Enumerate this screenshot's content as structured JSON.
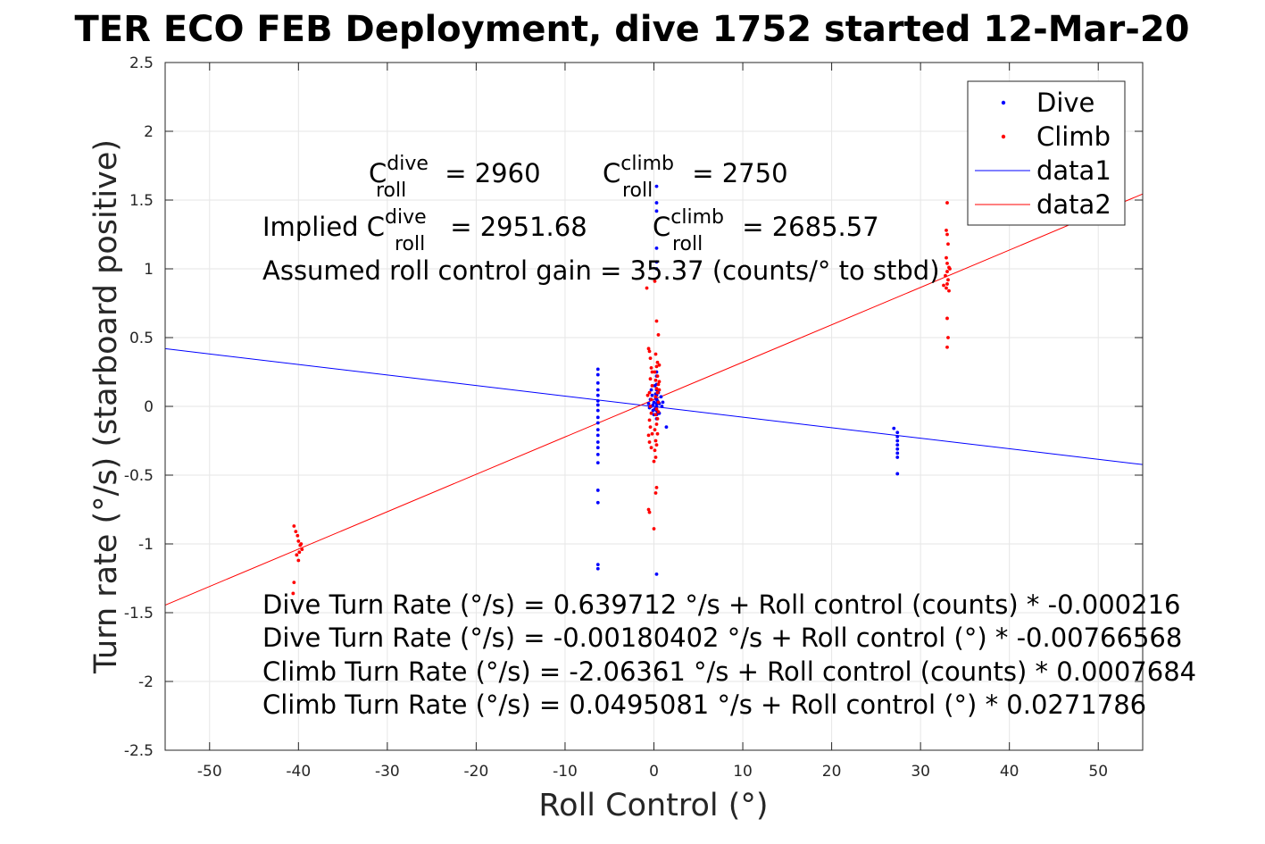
{
  "chart_data": {
    "type": "scatter",
    "title": "TER ECO FEB Deployment, dive 1752 started 12-Mar-20",
    "xlabel": "Roll Control (°)",
    "ylabel": "Turn rate (°/s) (starboard positive)",
    "xlim": [
      -55,
      55
    ],
    "ylim": [
      -2.5,
      2.5
    ],
    "xticks": [
      -50,
      -40,
      -30,
      -20,
      -10,
      0,
      10,
      20,
      30,
      40,
      50
    ],
    "yticks": [
      -2.5,
      -2,
      -1.5,
      -1,
      -0.5,
      0,
      0.5,
      1,
      1.5,
      2,
      2.5
    ],
    "grid": true,
    "legend_position": "top-right",
    "colors": {
      "dive": "#0000ff",
      "climb": "#ff0000"
    },
    "series": [
      {
        "name": "Dive",
        "kind": "points",
        "color": "#0000ff",
        "points": [
          [
            -6.3,
            0.27
          ],
          [
            -6.3,
            0.23
          ],
          [
            -6.3,
            0.17
          ],
          [
            -6.3,
            0.12
          ],
          [
            -6.3,
            0.08
          ],
          [
            -6.3,
            0.04
          ],
          [
            -6.3,
            0.01
          ],
          [
            -6.3,
            -0.03
          ],
          [
            -6.3,
            -0.08
          ],
          [
            -6.3,
            -0.12
          ],
          [
            -6.3,
            -0.17
          ],
          [
            -6.3,
            -0.21
          ],
          [
            -6.3,
            -0.26
          ],
          [
            -6.3,
            -0.3
          ],
          [
            -6.3,
            -0.35
          ],
          [
            -6.3,
            -0.41
          ],
          [
            -6.3,
            -0.61
          ],
          [
            -6.3,
            -0.7
          ],
          [
            -6.3,
            -1.15
          ],
          [
            -6.3,
            -1.18
          ],
          [
            0.3,
            1.6
          ],
          [
            0.3,
            1.48
          ],
          [
            0.3,
            1.42
          ],
          [
            0.3,
            1.15
          ],
          [
            0.3,
            1.05
          ],
          [
            0.3,
            1.0
          ],
          [
            0.3,
            0.25
          ],
          [
            0.3,
            0.22
          ],
          [
            0.3,
            0.16
          ],
          [
            0.3,
            0.12
          ],
          [
            0.3,
            0.08
          ],
          [
            0.3,
            0.05
          ],
          [
            0.3,
            0.02
          ],
          [
            0.3,
            0.0
          ],
          [
            0.3,
            -0.03
          ],
          [
            0.3,
            -0.06
          ],
          [
            0.3,
            -0.09
          ],
          [
            0.3,
            -1.22
          ],
          [
            -0.6,
            0.02
          ],
          [
            -0.5,
            -0.01
          ],
          [
            -0.4,
            0.05
          ],
          [
            -0.3,
            0.0
          ],
          [
            -0.2,
            0.08
          ],
          [
            -0.1,
            0.01
          ],
          [
            0.0,
            0.03
          ],
          [
            0.1,
            -0.02
          ],
          [
            0.2,
            0.06
          ],
          [
            0.4,
            0.04
          ],
          [
            0.5,
            0.1
          ],
          [
            0.6,
            0.02
          ],
          [
            0.8,
            0.07
          ],
          [
            0.9,
            0.0
          ],
          [
            -0.3,
            0.12
          ],
          [
            0.1,
            0.15
          ],
          [
            -0.1,
            -0.03
          ],
          [
            0.6,
            -0.05
          ],
          [
            1.0,
            0.03
          ],
          [
            0.4,
            -0.04
          ],
          [
            0.2,
            0.09
          ],
          [
            0.0,
            -0.06
          ],
          [
            1.4,
            -0.15
          ],
          [
            27.0,
            -0.16
          ],
          [
            27.4,
            -0.19
          ],
          [
            27.4,
            -0.22
          ],
          [
            27.4,
            -0.25
          ],
          [
            27.4,
            -0.28
          ],
          [
            27.4,
            -0.31
          ],
          [
            27.4,
            -0.34
          ],
          [
            27.4,
            -0.37
          ],
          [
            27.4,
            -0.49
          ]
        ]
      },
      {
        "name": "Climb",
        "kind": "points",
        "color": "#ff0000",
        "points": [
          [
            -40.5,
            -0.87
          ],
          [
            -40.3,
            -0.91
          ],
          [
            -40.1,
            -0.94
          ],
          [
            -40.0,
            -0.98
          ],
          [
            -39.8,
            -1.01
          ],
          [
            -39.6,
            -1.04
          ],
          [
            -39.9,
            -1.06
          ],
          [
            -40.2,
            -1.08
          ],
          [
            -40.0,
            -1.12
          ],
          [
            -40.5,
            -1.28
          ],
          [
            -40.6,
            -1.36
          ],
          [
            -39.7,
            -1.0
          ],
          [
            -0.6,
            0.42
          ],
          [
            -0.4,
            0.35
          ],
          [
            -0.3,
            0.28
          ],
          [
            -0.2,
            0.25
          ],
          [
            -0.4,
            0.2
          ],
          [
            -0.2,
            0.15
          ],
          [
            -0.5,
            0.1
          ],
          [
            -0.3,
            0.05
          ],
          [
            -0.4,
            0.0
          ],
          [
            -0.3,
            -0.05
          ],
          [
            -0.5,
            -0.1
          ],
          [
            -0.4,
            -0.15
          ],
          [
            -0.2,
            -0.2
          ],
          [
            -0.5,
            -0.26
          ],
          [
            -0.3,
            -0.3
          ],
          [
            -0.6,
            -0.75
          ],
          [
            -0.5,
            -0.77
          ],
          [
            -0.8,
            0.86
          ],
          [
            -0.5,
            0.4
          ],
          [
            -0.6,
            -0.21
          ],
          [
            -0.7,
            0.08
          ],
          [
            0.1,
            0.91
          ],
          [
            0.3,
            0.62
          ],
          [
            0.5,
            0.52
          ],
          [
            0.2,
            0.38
          ],
          [
            0.4,
            0.32
          ],
          [
            0.3,
            0.29
          ],
          [
            0.1,
            0.25
          ],
          [
            0.4,
            0.22
          ],
          [
            0.2,
            0.19
          ],
          [
            0.5,
            0.16
          ],
          [
            0.3,
            0.13
          ],
          [
            0.4,
            0.1
          ],
          [
            0.2,
            0.07
          ],
          [
            0.5,
            0.03
          ],
          [
            0.3,
            -0.02
          ],
          [
            0.2,
            -0.06
          ],
          [
            0.4,
            -0.09
          ],
          [
            0.3,
            -0.13
          ],
          [
            0.1,
            -0.17
          ],
          [
            0.4,
            -0.2
          ],
          [
            0.2,
            -0.25
          ],
          [
            0.3,
            -0.28
          ],
          [
            0.1,
            -0.32
          ],
          [
            0.2,
            -0.37
          ],
          [
            0.0,
            -0.4
          ],
          [
            0.3,
            -0.59
          ],
          [
            0.2,
            -0.63
          ],
          [
            0.0,
            -0.89
          ],
          [
            0.6,
            0.3
          ],
          [
            0.5,
            -0.04
          ],
          [
            0.6,
            0.18
          ],
          [
            0.6,
            0.12
          ],
          [
            33.0,
            1.48
          ],
          [
            32.9,
            1.28
          ],
          [
            33.0,
            1.25
          ],
          [
            33.1,
            1.18
          ],
          [
            32.9,
            1.08
          ],
          [
            33.0,
            1.04
          ],
          [
            33.2,
            1.01
          ],
          [
            33.0,
            0.98
          ],
          [
            32.8,
            0.95
          ],
          [
            33.1,
            0.92
          ],
          [
            33.0,
            0.89
          ],
          [
            32.9,
            0.86
          ],
          [
            33.2,
            0.84
          ],
          [
            33.0,
            0.64
          ],
          [
            33.1,
            0.5
          ],
          [
            33.0,
            0.43
          ],
          [
            32.6,
            0.88
          ],
          [
            33.3,
            1.0
          ]
        ]
      },
      {
        "name": "data1",
        "kind": "line",
        "color": "#0000ff",
        "points": [
          [
            -55,
            0.4195
          ],
          [
            55,
            -0.4231
          ]
        ]
      },
      {
        "name": "data2",
        "kind": "line",
        "color": "#ff0000",
        "points": [
          [
            -55,
            -1.4453
          ],
          [
            55,
            1.5443
          ]
        ]
      }
    ],
    "legend": [
      "Dive",
      "Climb",
      "data1",
      "data2"
    ],
    "annotations": {
      "c_dive": {
        "base": "C",
        "sup": "dive",
        "sub": "roll",
        "value": " = 2960"
      },
      "c_climb": {
        "base": "C",
        "sup": "climb",
        "sub": "roll",
        "value": " = 2750"
      },
      "implied_prefix": "Implied C",
      "implied_dive": {
        "sup": "dive",
        "sub": "roll",
        "value": " = 2951.68"
      },
      "implied_climb": {
        "base": "C",
        "sup": "climb",
        "sub": "roll",
        "value": " = 2685.57"
      },
      "gain_line": "Assumed roll control gain = 35.37 (counts/° to stbd)",
      "eq_lines": [
        "Dive Turn Rate (°/s) = 0.639712 °/s + Roll control (counts) * -0.000216",
        "Dive Turn Rate (°/s) = -0.00180402 °/s + Roll control (°) * -0.00766568",
        "Climb Turn Rate (°/s) = -2.06361 °/s + Roll control (counts) * 0.0007684",
        "Climb Turn Rate (°/s) = 0.0495081 °/s + Roll control (°) * 0.0271786"
      ]
    }
  }
}
